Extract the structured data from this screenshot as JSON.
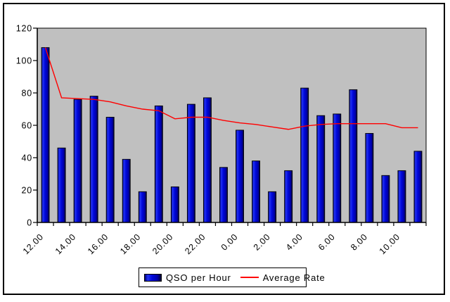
{
  "chart_data": {
    "type": "bar",
    "title": "",
    "xlabel": "",
    "ylabel": "",
    "num_slots": 24,
    "x_axis": {
      "tick_labels": [
        "12.00",
        "14.00",
        "16.00",
        "18.00",
        "20.00",
        "22.00",
        "0.00",
        "2.00",
        "4.00",
        "6.00",
        "8.00",
        "10.00"
      ],
      "label_every_n_slots": 2
    },
    "y_axis": {
      "min": 0,
      "max": 120,
      "tick_step": 20,
      "ticks": [
        0,
        20,
        40,
        60,
        80,
        100,
        120
      ]
    },
    "grid": false,
    "plot_bg": "#c0c0c0",
    "legend_position": "bottom",
    "series": [
      {
        "name": "QSO per Hour",
        "type": "bar",
        "color": "#0000cc",
        "values": [
          108,
          46,
          76,
          78,
          65,
          39,
          19,
          72,
          22,
          73,
          77,
          34,
          57,
          38,
          19,
          32,
          83,
          66,
          67,
          82,
          55,
          29,
          32,
          44
        ]
      },
      {
        "name": "Average Rate",
        "type": "line",
        "color": "#ff0000",
        "values": [
          108,
          77,
          76.5,
          76,
          74.5,
          72,
          70,
          69,
          64,
          65,
          65,
          63,
          61.5,
          60.5,
          59,
          57.5,
          59.5,
          60.5,
          61,
          61,
          61,
          61,
          58.5,
          58.5
        ]
      }
    ]
  },
  "legend": {
    "items": [
      {
        "label": "QSO per Hour",
        "swatch": "bar-swatch"
      },
      {
        "label": "Average Rate",
        "swatch": "line-swatch"
      }
    ]
  },
  "colors": {
    "bar_fill": "#0000cc",
    "bar_edge": "#000000",
    "line": "#ff0000",
    "plot_bg": "#c0c0c0",
    "axis": "#000000",
    "frame_border": "#000000",
    "page_bg": "#ffffff"
  }
}
